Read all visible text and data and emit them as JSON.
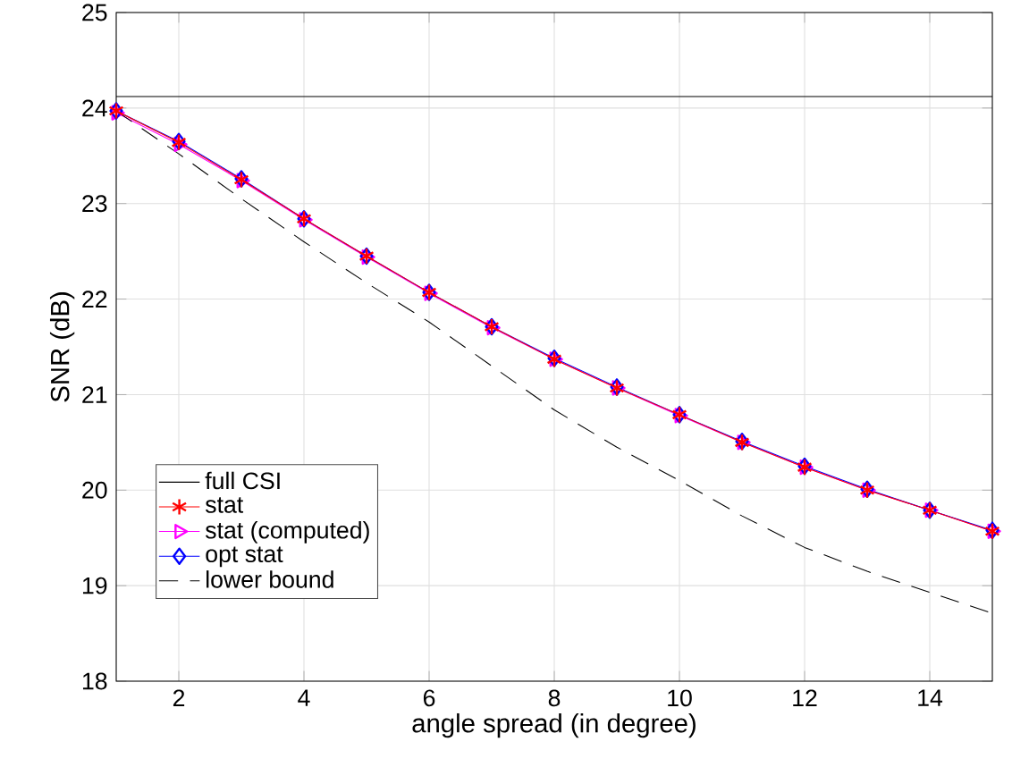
{
  "chart_data": {
    "type": "line",
    "xlabel": "angle spread (in degree)",
    "ylabel": "SNR (dB)",
    "x": [
      1,
      2,
      3,
      4,
      5,
      6,
      7,
      8,
      9,
      10,
      11,
      12,
      13,
      14,
      15
    ],
    "series": [
      {
        "name": "full CSI",
        "color": "#000000",
        "marker": "none",
        "line_style": "solid",
        "x": [
          1,
          15
        ],
        "values": [
          24.12,
          24.12
        ]
      },
      {
        "name": "stat",
        "color": "#ff0000",
        "marker": "cross",
        "line_style": "solid",
        "values": [
          23.97,
          23.64,
          23.25,
          22.84,
          22.45,
          22.07,
          21.71,
          21.37,
          21.07,
          20.79,
          20.5,
          20.24,
          20.0,
          19.79,
          19.57
        ]
      },
      {
        "name": "stat (computed)",
        "color": "#ff00ff",
        "marker": "triangle",
        "line_style": "solid",
        "values": [
          23.95,
          23.62,
          23.24,
          22.83,
          22.44,
          22.06,
          21.7,
          21.37,
          21.07,
          20.78,
          20.5,
          20.24,
          20.0,
          19.79,
          19.57
        ]
      },
      {
        "name": "opt stat",
        "color": "#0000ff",
        "marker": "diamond",
        "line_style": "solid",
        "values": [
          23.97,
          23.65,
          23.26,
          22.84,
          22.45,
          22.07,
          21.71,
          21.38,
          21.08,
          20.79,
          20.51,
          20.25,
          20.01,
          19.79,
          19.58
        ]
      },
      {
        "name": "lower bound",
        "color": "#000000",
        "marker": "none",
        "line_style": "dashed",
        "values": [
          23.97,
          23.52,
          23.05,
          22.6,
          22.17,
          21.76,
          21.3,
          20.84,
          20.45,
          20.1,
          19.73,
          19.4,
          19.15,
          18.93,
          18.71
        ]
      }
    ],
    "xlim": [
      1,
      15
    ],
    "ylim": [
      18,
      25
    ],
    "xticks": [
      2,
      4,
      6,
      8,
      10,
      12,
      14
    ],
    "yticks": [
      18,
      19,
      20,
      21,
      22,
      23,
      24,
      25
    ],
    "grid": true,
    "legend": "bottom left"
  }
}
